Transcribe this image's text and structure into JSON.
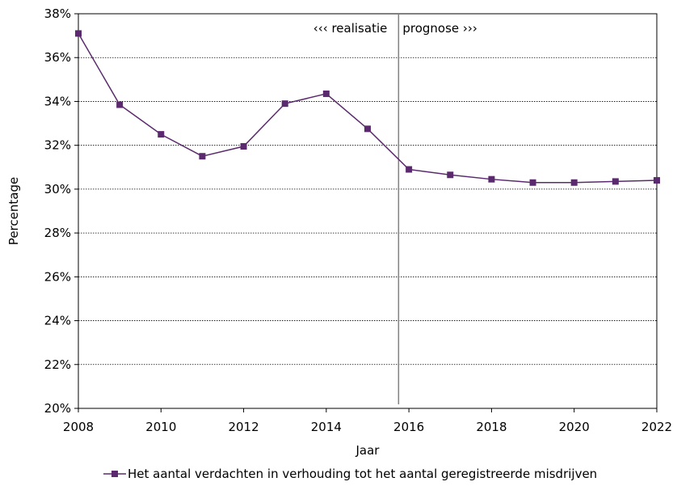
{
  "chart_data": {
    "type": "line",
    "xlabel": "Jaar",
    "ylabel": "Percentage",
    "xlim": [
      2008,
      2022
    ],
    "ylim": [
      20,
      38
    ],
    "x_ticks": [
      2008,
      2010,
      2012,
      2014,
      2016,
      2018,
      2020,
      2022
    ],
    "y_ticks": [
      20,
      22,
      24,
      26,
      28,
      30,
      32,
      34,
      36,
      38
    ],
    "y_tick_labels": [
      "20%",
      "22%",
      "24%",
      "26%",
      "28%",
      "30%",
      "32%",
      "34%",
      "36%",
      "38%"
    ],
    "grid": "horizontal",
    "legend_position": "bottom",
    "divider_x": 2015.75,
    "annotations": {
      "left": "‹‹‹ realisatie",
      "right": "prognose ›››"
    },
    "series": [
      {
        "name": "Het aantal verdachten in verhouding tot het aantal geregistreerde misdrijven",
        "color": "#5b2a6e",
        "marker": "square",
        "x": [
          2008,
          2009,
          2010,
          2011,
          2012,
          2013,
          2014,
          2015,
          2016,
          2017,
          2018,
          2019,
          2020,
          2021,
          2022
        ],
        "values": [
          37.1,
          33.85,
          32.5,
          31.5,
          31.95,
          33.9,
          34.35,
          32.75,
          30.9,
          30.65,
          30.45,
          30.3,
          30.3,
          30.35,
          30.4
        ]
      }
    ]
  }
}
